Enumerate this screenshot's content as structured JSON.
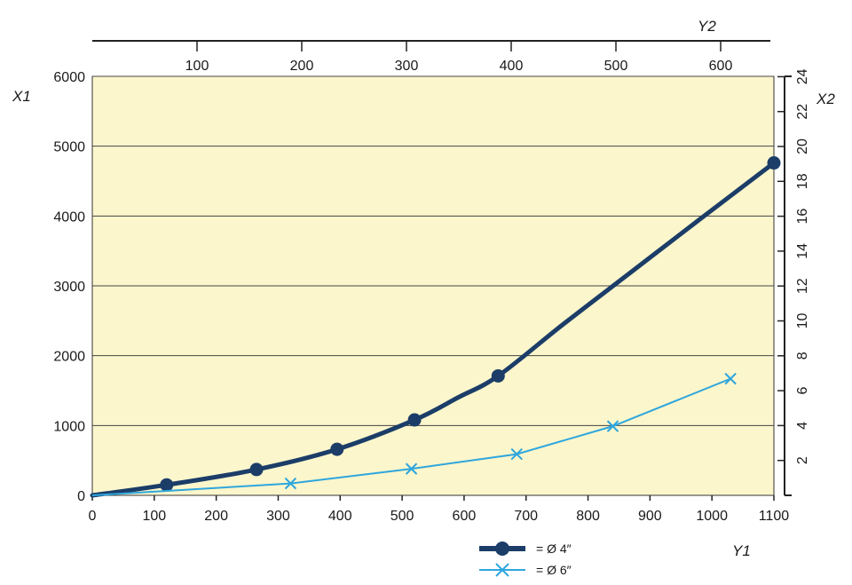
{
  "chart_data": {
    "type": "line",
    "title": "",
    "xlabel": "Y1",
    "ylabel": "X1",
    "x2label": "Y2",
    "y2label": "X2",
    "xlim": [
      0,
      1100
    ],
    "ylim": [
      0,
      6000
    ],
    "x_ticks": [
      0,
      100,
      200,
      300,
      400,
      500,
      600,
      700,
      800,
      900,
      1000,
      1100
    ],
    "y_ticks": [
      0,
      1000,
      2000,
      3000,
      4000,
      5000,
      6000
    ],
    "y2_ticks": [
      2,
      4,
      6,
      8,
      10,
      12,
      14,
      16,
      18,
      20,
      22,
      24
    ],
    "x2_ticks": [
      100,
      200,
      300,
      400,
      500,
      600
    ],
    "grid": "horizontal",
    "background_color": "#fcf6cc",
    "legend_position": "bottom-center",
    "series": [
      {
        "name": "= Ø 4″",
        "color": "#1b3d68",
        "marker": "circle",
        "line_style": "thick",
        "x": [
          0,
          120,
          265,
          395,
          520,
          655,
          1100
        ],
        "y": [
          0,
          150,
          370,
          660,
          1080,
          1710,
          4760
        ],
        "path_x": [
          0,
          120,
          265,
          395,
          520,
          590,
          655,
          760,
          870,
          980,
          1100
        ],
        "path_y": [
          0,
          150,
          370,
          660,
          1080,
          1400,
          1710,
          2450,
          3200,
          3950,
          4760
        ]
      },
      {
        "name": "= Ø 6″",
        "color": "#2ea6dd",
        "marker": "x",
        "line_style": "thin",
        "x": [
          0,
          320,
          515,
          685,
          840,
          1030
        ],
        "y": [
          0,
          170,
          380,
          590,
          990,
          1670
        ]
      }
    ]
  }
}
